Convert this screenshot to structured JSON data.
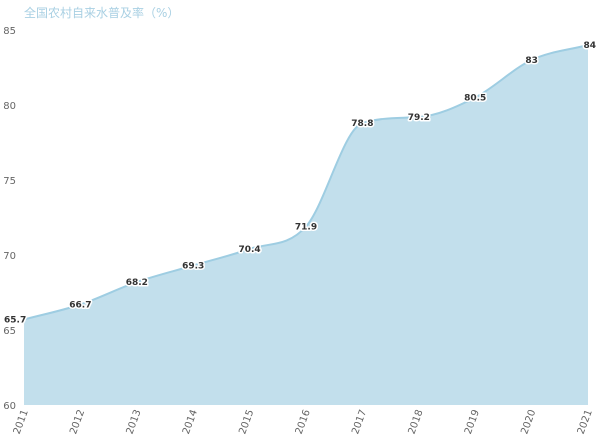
{
  "chart_data": {
    "type": "area",
    "title": "全国农村自来水普及率（%）",
    "xlabel": "",
    "ylabel": "",
    "categories": [
      "2011",
      "2012",
      "2013",
      "2014",
      "2015",
      "2016",
      "2017",
      "2018",
      "2019",
      "2020",
      "2021"
    ],
    "series": [
      {
        "values": [
          65.7,
          66.7,
          68.2,
          69.3,
          70.4,
          71.9,
          78.8,
          79.2,
          80.5,
          83,
          84
        ]
      }
    ],
    "data_labels": [
      "65.7",
      "66.7",
      "68.2",
      "69.3",
      "70.4",
      "71.9",
      "78.8",
      "79.2",
      "80.5",
      "83",
      "84"
    ],
    "ylim": [
      60,
      85
    ],
    "yticks": [
      "60",
      "65",
      "70",
      "75",
      "80",
      "85"
    ],
    "grid": false,
    "legend": "none",
    "colors": {
      "fill": "#c2dfec",
      "line": "#9ecde2",
      "title": "#a9d0e3",
      "label": "#333333",
      "tick": "#666666"
    }
  }
}
